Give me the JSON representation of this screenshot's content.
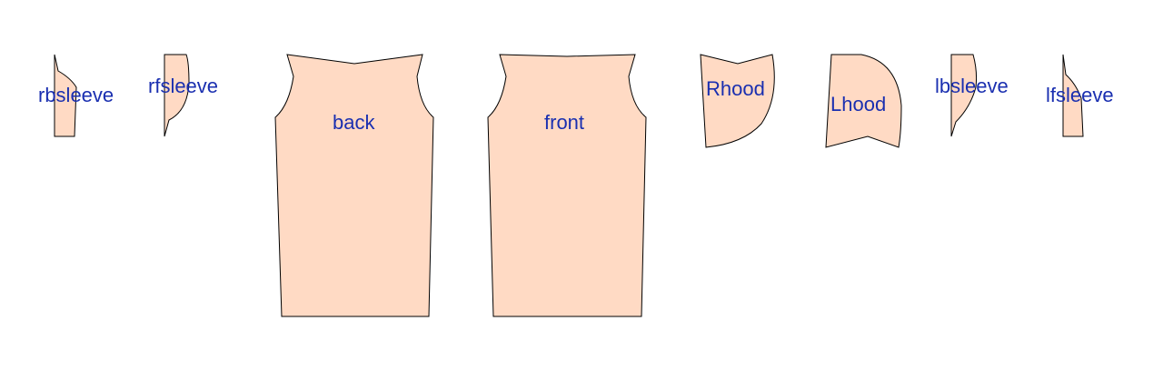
{
  "colors": {
    "piece_fill": "#ffdac4",
    "piece_stroke": "#000000",
    "label": "#1a2fb0",
    "background": "#ffffff"
  },
  "pieces": [
    {
      "id": "rbsleeve",
      "label": "rbsleeve"
    },
    {
      "id": "rfsleeve",
      "label": "rfsleeve"
    },
    {
      "id": "back",
      "label": "back"
    },
    {
      "id": "front",
      "label": "front"
    },
    {
      "id": "rhood",
      "label": "Rhood"
    },
    {
      "id": "lhood",
      "label": "Lhood"
    },
    {
      "id": "lbsleeve",
      "label": "lbsleeve"
    },
    {
      "id": "lfsleeve",
      "label": "lfsleeve"
    }
  ]
}
